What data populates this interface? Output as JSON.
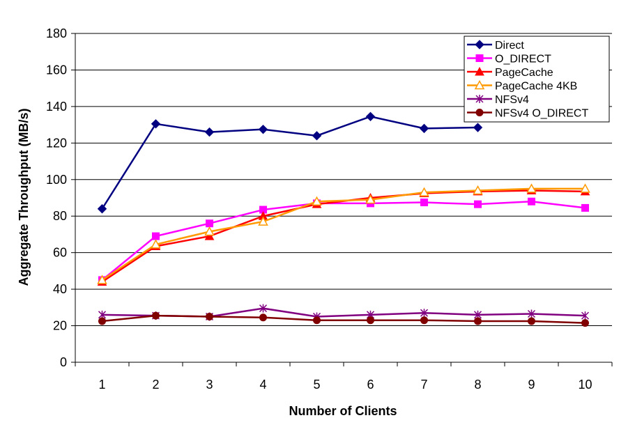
{
  "chart_data": {
    "type": "line",
    "title": "",
    "xlabel": "Number of Clients",
    "ylabel": "Aggregate Throughput (MB/s)",
    "x": [
      1,
      2,
      3,
      4,
      5,
      6,
      7,
      8,
      9,
      10
    ],
    "ylim": [
      0,
      180
    ],
    "yticks": [
      0,
      20,
      40,
      60,
      80,
      100,
      120,
      140,
      160,
      180
    ],
    "grid": "horizontal",
    "legend": "top-right",
    "series": [
      {
        "name": "Direct",
        "color": "#000080",
        "marker": "diamond",
        "values": [
          84,
          130.5,
          126,
          127.5,
          124,
          134.5,
          128,
          128.5,
          null,
          null
        ]
      },
      {
        "name": "O_DIRECT",
        "color": "#FF00FF",
        "marker": "square",
        "values": [
          45,
          69,
          76,
          83.5,
          87,
          87,
          87.5,
          86.5,
          88,
          84.5
        ]
      },
      {
        "name": "PageCache",
        "color": "#FF0000",
        "marker": "triangle",
        "values": [
          44,
          63.5,
          69,
          80,
          86.5,
          90,
          92.5,
          93.5,
          94,
          93.5
        ]
      },
      {
        "name": "PageCache 4KB",
        "color": "#FF9900",
        "marker": "triangle-open",
        "values": [
          45,
          64.5,
          71.5,
          77,
          88,
          89,
          93,
          94,
          95,
          95
        ]
      },
      {
        "name": "NFSv4",
        "color": "#800080",
        "marker": "star",
        "values": [
          26,
          25.5,
          25,
          29.5,
          25,
          26,
          27,
          26,
          26.5,
          25.5
        ]
      },
      {
        "name": "NFSv4 O_DIRECT",
        "color": "#800000",
        "marker": "circle",
        "values": [
          22.5,
          25.5,
          25,
          24.5,
          23,
          23,
          23,
          22.5,
          22.5,
          21.5
        ]
      }
    ]
  }
}
